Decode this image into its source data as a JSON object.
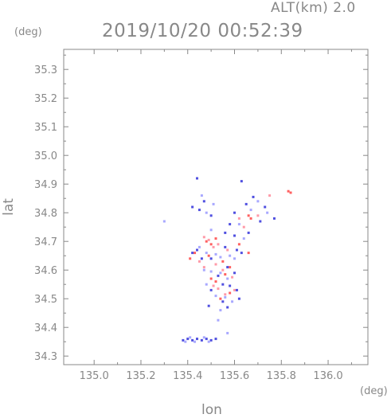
{
  "header": {
    "altitude": "ALT(km) 2.0",
    "timestamp": "2019/10/20 00:52:39"
  },
  "chart_data": {
    "type": "scatter",
    "title": "",
    "xlabel": "lon",
    "ylabel": "lat",
    "xunit": "(deg)",
    "yunit": "(deg)",
    "xlim": [
      134.87,
      136.17
    ],
    "ylim": [
      34.27,
      35.37
    ],
    "xticks": [
      "135.0",
      "135.2",
      "135.4",
      "135.6",
      "135.8",
      "136.0"
    ],
    "yticks": [
      "34.3",
      "34.4",
      "34.5",
      "34.6",
      "34.7",
      "34.8",
      "34.9",
      "35.0",
      "35.1",
      "35.2",
      "35.3"
    ],
    "grid": false,
    "series": [
      {
        "color": "#ff6060",
        "points": [
          [
            135.83,
            34.875
          ],
          [
            135.84,
            34.87
          ],
          [
            135.66,
            34.79
          ],
          [
            135.67,
            34.78
          ],
          [
            135.48,
            34.7
          ],
          [
            135.5,
            34.69
          ],
          [
            135.52,
            34.71
          ],
          [
            135.43,
            34.66
          ],
          [
            135.41,
            34.64
          ],
          [
            135.55,
            34.63
          ],
          [
            135.58,
            34.61
          ],
          [
            135.56,
            34.585
          ],
          [
            135.5,
            34.57
          ],
          [
            135.52,
            34.56
          ],
          [
            135.58,
            34.52
          ],
          [
            135.54,
            34.5
          ],
          [
            135.49,
            34.65
          ],
          [
            135.62,
            34.69
          ],
          [
            135.66,
            34.66
          ]
        ]
      },
      {
        "color": "#ff9aa8",
        "points": [
          [
            135.47,
            34.715
          ],
          [
            135.49,
            34.705
          ],
          [
            135.51,
            34.68
          ],
          [
            135.53,
            34.69
          ],
          [
            135.57,
            34.67
          ],
          [
            135.45,
            34.63
          ],
          [
            135.47,
            34.61
          ],
          [
            135.52,
            34.62
          ],
          [
            135.55,
            34.6
          ],
          [
            135.59,
            34.575
          ],
          [
            135.51,
            34.545
          ],
          [
            135.53,
            34.535
          ],
          [
            135.56,
            34.515
          ],
          [
            135.6,
            34.53
          ],
          [
            135.64,
            34.75
          ],
          [
            135.7,
            34.79
          ],
          [
            135.75,
            34.86
          ],
          [
            135.62,
            34.78
          ]
        ]
      },
      {
        "color": "#5050e0",
        "points": [
          [
            135.42,
            34.66
          ],
          [
            135.44,
            34.67
          ],
          [
            135.46,
            34.64
          ],
          [
            135.5,
            34.64
          ],
          [
            135.56,
            34.68
          ],
          [
            135.61,
            34.67
          ],
          [
            135.63,
            34.66
          ],
          [
            135.57,
            34.61
          ],
          [
            135.6,
            34.59
          ],
          [
            135.53,
            34.58
          ],
          [
            135.55,
            34.55
          ],
          [
            135.58,
            34.545
          ],
          [
            135.61,
            34.53
          ],
          [
            135.5,
            34.53
          ],
          [
            135.55,
            34.49
          ],
          [
            135.57,
            34.47
          ],
          [
            135.49,
            34.475
          ],
          [
            135.62,
            34.5
          ],
          [
            135.38,
            34.355
          ],
          [
            135.4,
            34.36
          ],
          [
            135.42,
            34.355
          ],
          [
            135.44,
            34.36
          ],
          [
            135.46,
            34.355
          ],
          [
            135.48,
            34.36
          ],
          [
            135.5,
            34.355
          ],
          [
            135.52,
            34.36
          ],
          [
            135.45,
            34.81
          ],
          [
            135.47,
            34.84
          ],
          [
            135.5,
            34.79
          ],
          [
            135.42,
            34.82
          ],
          [
            135.68,
            34.855
          ],
          [
            135.73,
            34.82
          ],
          [
            135.77,
            34.78
          ],
          [
            135.6,
            34.8
          ],
          [
            135.65,
            34.83
          ],
          [
            135.71,
            34.77
          ],
          [
            135.63,
            34.91
          ],
          [
            135.58,
            34.76
          ],
          [
            135.44,
            34.92
          ],
          [
            135.56,
            34.73
          ],
          [
            135.6,
            34.72
          ],
          [
            135.66,
            34.73
          ]
        ]
      },
      {
        "color": "#a8a8ff",
        "points": [
          [
            135.45,
            34.68
          ],
          [
            135.48,
            34.66
          ],
          [
            135.52,
            34.655
          ],
          [
            135.54,
            34.645
          ],
          [
            135.58,
            34.65
          ],
          [
            135.6,
            34.64
          ],
          [
            135.47,
            34.6
          ],
          [
            135.5,
            34.595
          ],
          [
            135.54,
            34.59
          ],
          [
            135.57,
            34.57
          ],
          [
            135.48,
            34.55
          ],
          [
            135.52,
            34.51
          ],
          [
            135.56,
            34.505
          ],
          [
            135.59,
            34.49
          ],
          [
            135.54,
            34.46
          ],
          [
            135.39,
            34.35
          ],
          [
            135.41,
            34.365
          ],
          [
            135.43,
            34.35
          ],
          [
            135.47,
            34.365
          ],
          [
            135.49,
            34.35
          ],
          [
            135.46,
            34.86
          ],
          [
            135.48,
            34.8
          ],
          [
            135.51,
            34.83
          ],
          [
            135.7,
            34.84
          ],
          [
            135.74,
            34.8
          ],
          [
            135.67,
            34.81
          ],
          [
            135.62,
            34.76
          ],
          [
            135.3,
            34.77
          ],
          [
            135.53,
            34.425
          ],
          [
            135.57,
            34.38
          ],
          [
            135.64,
            34.71
          ],
          [
            135.5,
            34.74
          ]
        ]
      }
    ]
  }
}
